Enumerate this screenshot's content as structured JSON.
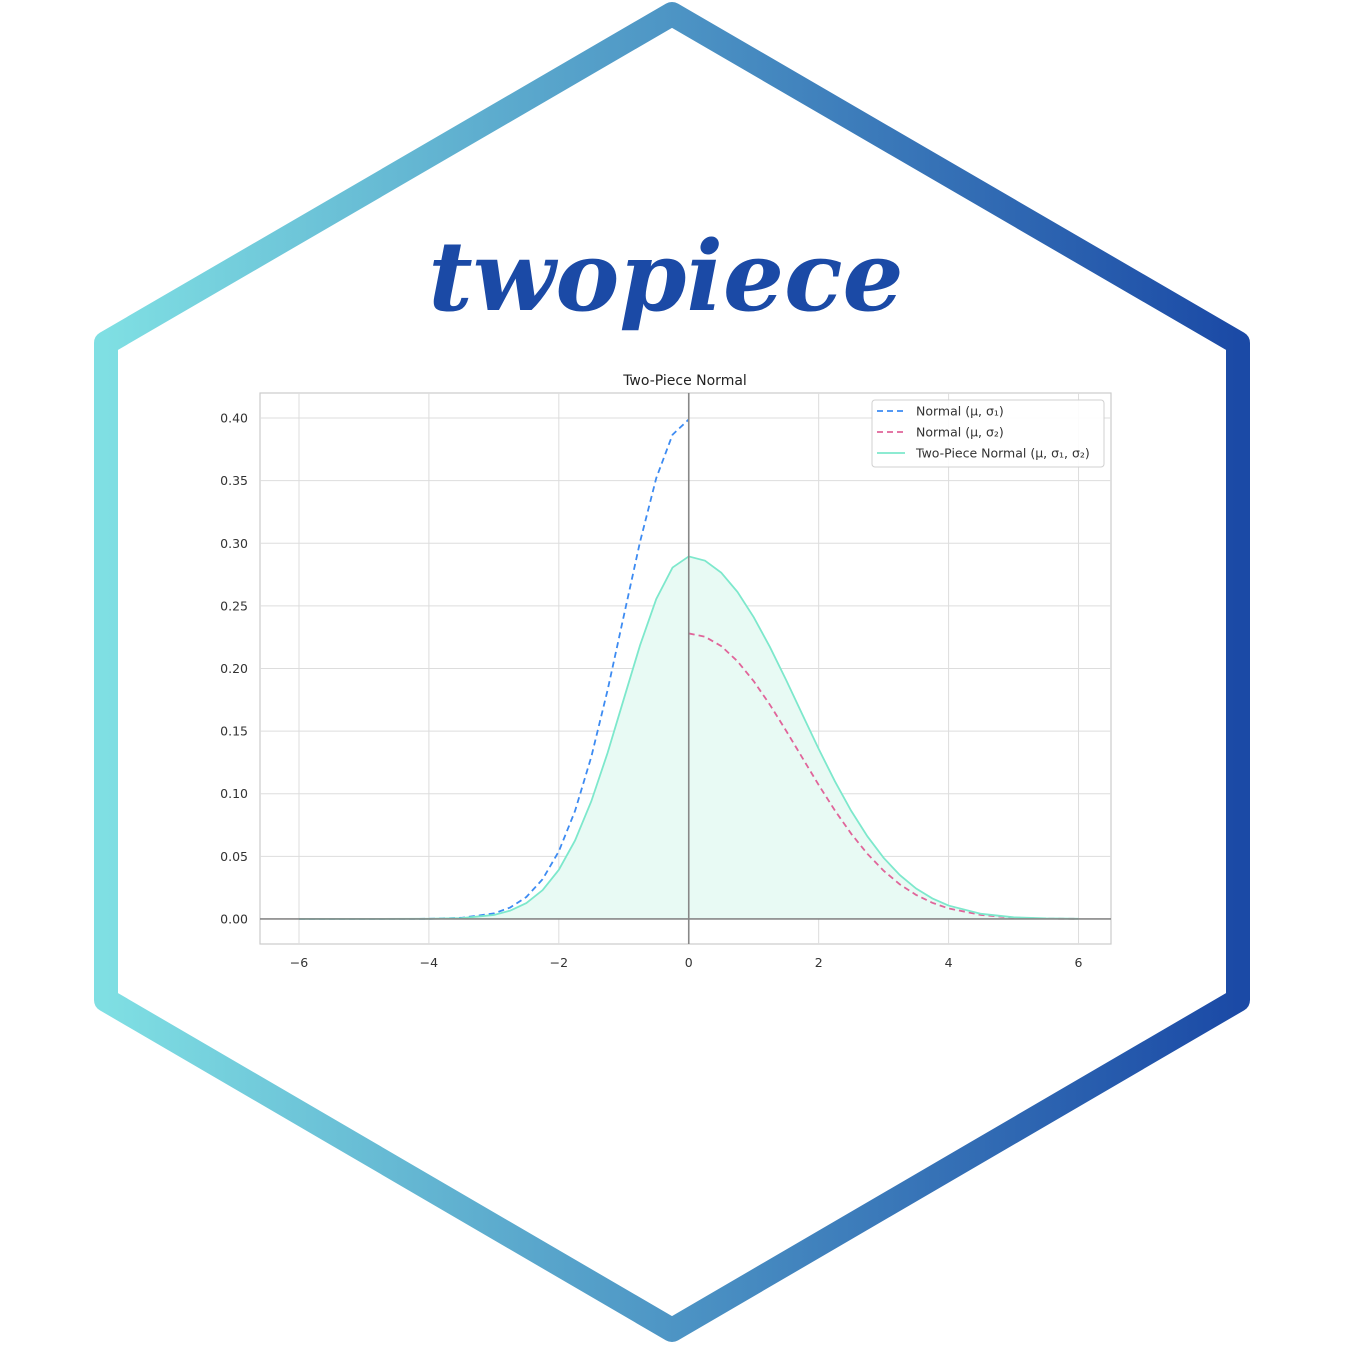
{
  "logo": {
    "name": "twopiece",
    "gradient_start": "#7fdfe3",
    "gradient_end": "#1b4aa6",
    "text_color": "#1b4aa6"
  },
  "chart_data": {
    "type": "line",
    "title": "Two-Piece Normal",
    "xlabel": "",
    "ylabel": "",
    "xlim": [
      -6.6,
      6.5
    ],
    "ylim": [
      -0.02,
      0.42
    ],
    "xticks": [
      -6,
      -4,
      -2,
      0,
      2,
      4,
      6
    ],
    "xtick_labels": [
      "−6",
      "−4",
      "−2",
      "0",
      "2",
      "4",
      "6"
    ],
    "yticks": [
      0.0,
      0.05,
      0.1,
      0.15,
      0.2,
      0.25,
      0.3,
      0.35,
      0.4
    ],
    "ytick_labels": [
      "0.00",
      "0.05",
      "0.10",
      "0.15",
      "0.20",
      "0.25",
      "0.30",
      "0.35",
      "0.40"
    ],
    "grid": true,
    "legend_position": "top-right",
    "series": [
      {
        "name": "Normal (μ, σ₁)",
        "color": "#3d8bf2",
        "style": "dashed",
        "x": [
          -6.0,
          -5.0,
          -4.0,
          -3.5,
          -3.0,
          -2.75,
          -2.5,
          -2.25,
          -2.0,
          -1.75,
          -1.5,
          -1.25,
          -1.0,
          -0.75,
          -0.5,
          -0.25,
          0.0
        ],
        "y": [
          0.0,
          0.0,
          0.0001,
          0.0009,
          0.0044,
          0.0091,
          0.0175,
          0.0317,
          0.054,
          0.0863,
          0.1295,
          0.1826,
          0.242,
          0.3011,
          0.3521,
          0.3867,
          0.3989
        ]
      },
      {
        "name": "Normal (μ, σ₂)",
        "color": "#e0659a",
        "style": "dashed",
        "x": [
          0.0,
          0.25,
          0.5,
          0.75,
          1.0,
          1.25,
          1.5,
          1.75,
          2.0,
          2.25,
          2.5,
          2.75,
          3.0,
          3.25,
          3.5,
          3.75,
          4.0,
          4.5,
          5.0,
          5.5,
          6.0
        ],
        "y": [
          0.228,
          0.2254,
          0.2179,
          0.2058,
          0.1899,
          0.171,
          0.1502,
          0.1286,
          0.107,
          0.0866,
          0.0681,
          0.052,
          0.0385,
          0.0276,
          0.0192,
          0.0129,
          0.0084,
          0.0032,
          0.001,
          0.0003,
          0.0001
        ]
      },
      {
        "name": "Two-Piece Normal (μ, σ₁, σ₂)",
        "color": "#7de8cc",
        "fill_color": "#e8faf4",
        "style": "solid",
        "fill": true,
        "x": [
          -6.0,
          -5.0,
          -4.0,
          -3.5,
          -3.0,
          -2.75,
          -2.5,
          -2.25,
          -2.0,
          -1.75,
          -1.5,
          -1.25,
          -1.0,
          -0.75,
          -0.5,
          -0.25,
          0.0,
          0.25,
          0.5,
          0.75,
          1.0,
          1.25,
          1.5,
          1.75,
          2.0,
          2.25,
          2.5,
          2.75,
          3.0,
          3.25,
          3.5,
          3.75,
          4.0,
          4.5,
          5.0,
          5.5,
          6.0
        ],
        "y": [
          0.0,
          0.0,
          0.0001,
          0.0006,
          0.0032,
          0.0066,
          0.0127,
          0.023,
          0.0392,
          0.0627,
          0.094,
          0.1325,
          0.1756,
          0.2185,
          0.2555,
          0.2806,
          0.2895,
          0.2861,
          0.2765,
          0.2612,
          0.241,
          0.2171,
          0.1907,
          0.1632,
          0.1358,
          0.1099,
          0.0864,
          0.066,
          0.0488,
          0.035,
          0.0243,
          0.0164,
          0.0107,
          0.0041,
          0.0013,
          0.0004,
          0.0001
        ]
      }
    ]
  }
}
